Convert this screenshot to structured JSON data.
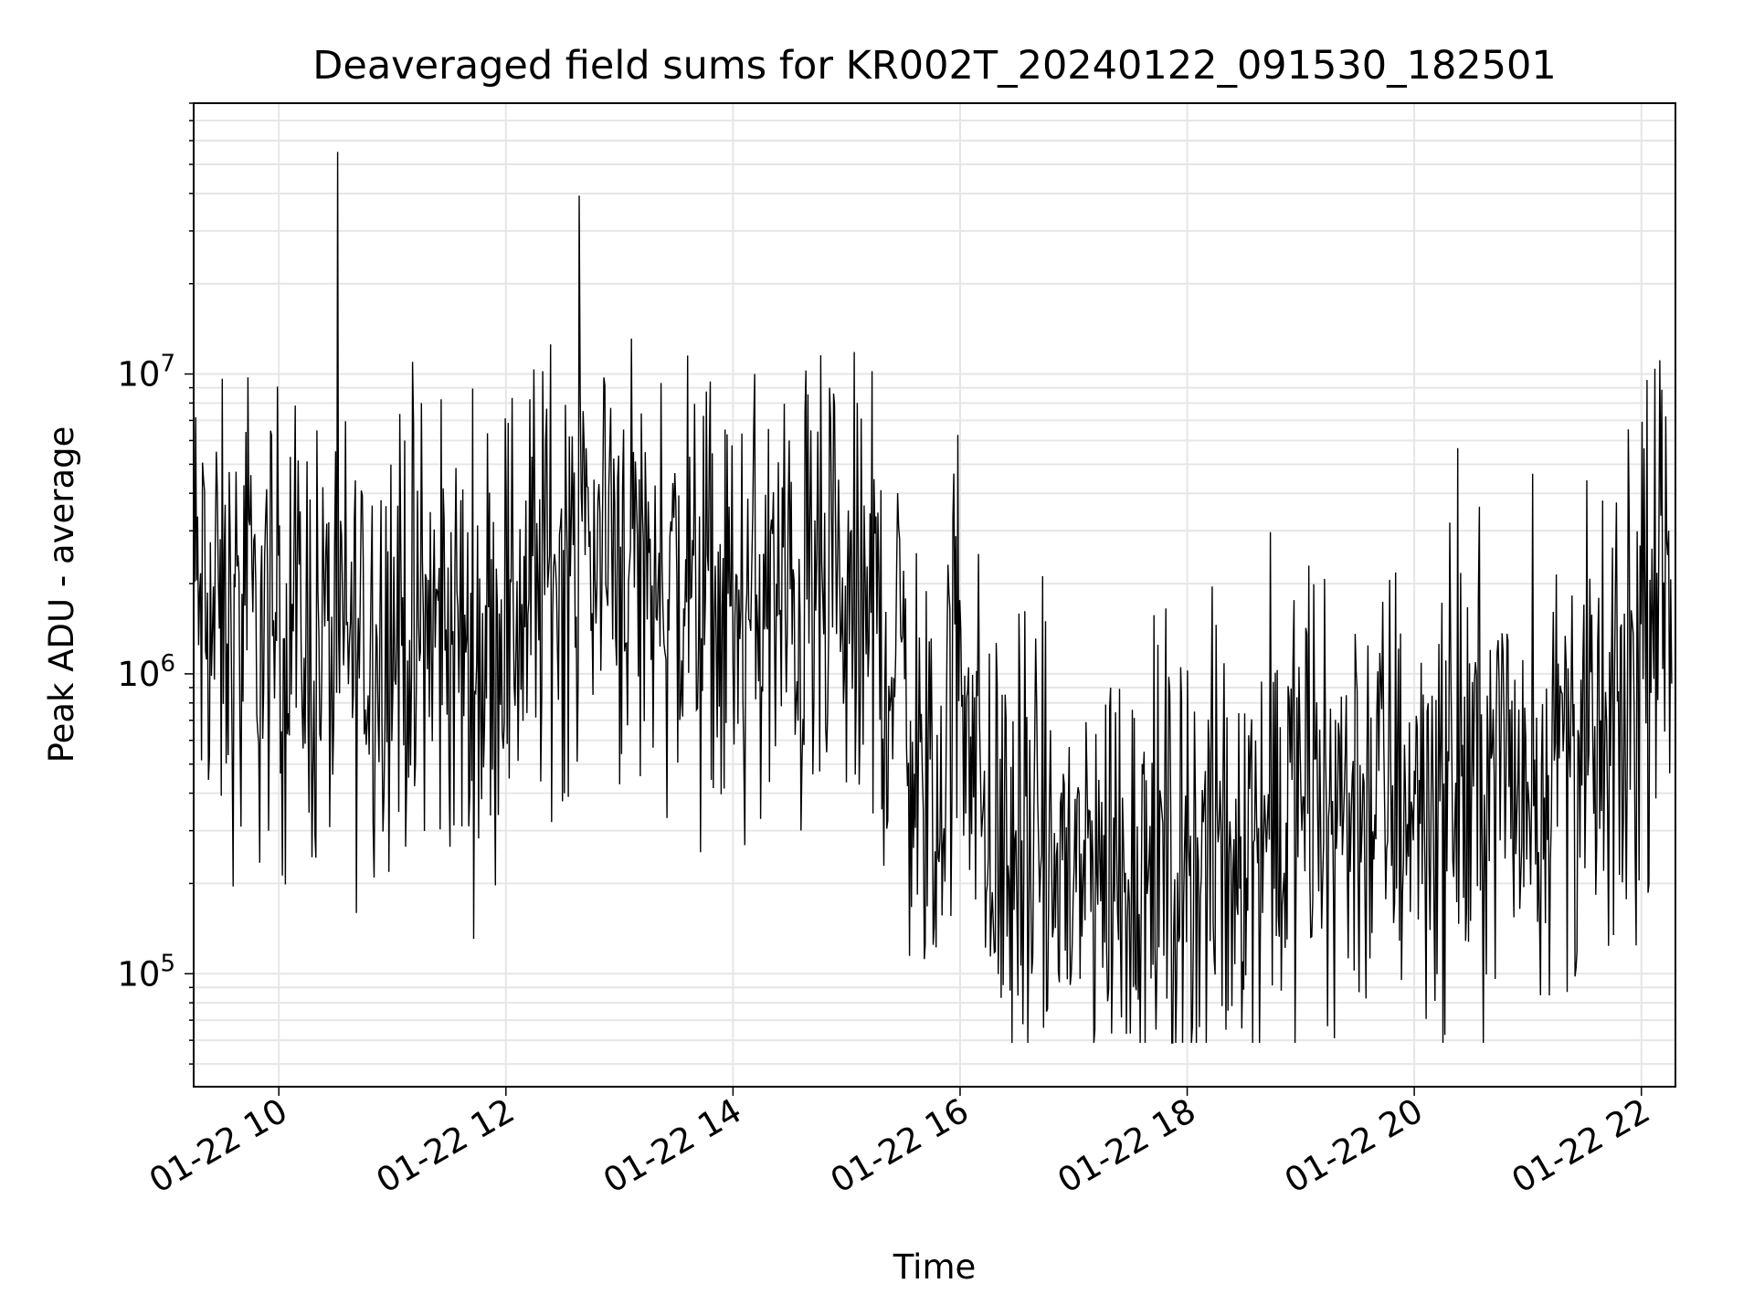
{
  "chart_data": {
    "type": "line",
    "title": "Deaveraged field sums for KR002T_20240122_091530_182501",
    "xlabel": "Time",
    "ylabel": "Peak ADU - average",
    "y_scale": "log",
    "ylim": [
      42000,
      80000000
    ],
    "xlim": [
      "2024-01-22 09:15",
      "2024-01-22 22:18"
    ],
    "x_tick_labels": [
      "01-22 10",
      "01-22 12",
      "01-22 14",
      "01-22 16",
      "01-22 18",
      "01-22 20",
      "01-22 22"
    ],
    "x_ticks": [
      "2024-01-22 10:00",
      "2024-01-22 12:00",
      "2024-01-22 14:00",
      "2024-01-22 16:00",
      "2024-01-22 18:00",
      "2024-01-22 20:00",
      "2024-01-22 22:00"
    ],
    "y_tick_labels": [
      {
        "base": "10",
        "exp": "5",
        "value": 100000
      },
      {
        "base": "10",
        "exp": "6",
        "value": 1000000
      },
      {
        "base": "10",
        "exp": "7",
        "value": 10000000
      }
    ],
    "grid": true,
    "line_color": "#000000",
    "series": [
      {
        "x": [
          "2024-01-22 09:15",
          "2024-01-22 09:20",
          "2024-01-22 09:30",
          "2024-01-22 09:45",
          "2024-01-22 10:00",
          "2024-01-22 10:15",
          "2024-01-22 10:30",
          "2024-01-22 10:45",
          "2024-01-22 11:00",
          "2024-01-22 11:15",
          "2024-01-22 11:30",
          "2024-01-22 11:45",
          "2024-01-22 12:00",
          "2024-01-22 12:15",
          "2024-01-22 12:30",
          "2024-01-22 12:45",
          "2024-01-22 13:00",
          "2024-01-22 13:15",
          "2024-01-22 13:30",
          "2024-01-22 13:45",
          "2024-01-22 14:00",
          "2024-01-22 14:15",
          "2024-01-22 14:30",
          "2024-01-22 14:45",
          "2024-01-22 15:00",
          "2024-01-22 15:15",
          "2024-01-22 15:30",
          "2024-01-22 15:45",
          "2024-01-22 16:00",
          "2024-01-22 16:15",
          "2024-01-22 16:30",
          "2024-01-22 16:45",
          "2024-01-22 17:00",
          "2024-01-22 17:15",
          "2024-01-22 17:30",
          "2024-01-22 17:45",
          "2024-01-22 18:00",
          "2024-01-22 18:15",
          "2024-01-22 18:30",
          "2024-01-22 18:45",
          "2024-01-22 19:00",
          "2024-01-22 19:15",
          "2024-01-22 19:30",
          "2024-01-22 19:45",
          "2024-01-22 20:00",
          "2024-01-22 20:15",
          "2024-01-22 20:30",
          "2024-01-22 20:45",
          "2024-01-22 21:00",
          "2024-01-22 21:15",
          "2024-01-22 21:30",
          "2024-01-22 21:45",
          "2024-01-22 22:00",
          "2024-01-22 22:10",
          "2024-01-22 22:15"
        ],
        "y": [
          2000000,
          1500000,
          1400000,
          1300000,
          1500000,
          1300000,
          1200000,
          1300000,
          1500000,
          1300000,
          1300000,
          1200000,
          1500000,
          2000000,
          2500000,
          2800000,
          2700000,
          2200000,
          1900000,
          1600000,
          1500000,
          1700000,
          1600000,
          1600000,
          1500000,
          1400000,
          1000000,
          250000,
          1500000,
          250000,
          250000,
          220000,
          220000,
          230000,
          240000,
          230000,
          220000,
          230000,
          280000,
          330000,
          350000,
          380000,
          380000,
          400000,
          400000,
          400000,
          450000,
          480000,
          450000,
          520000,
          550000,
          500000,
          1100000,
          1600000,
          2200000
        ]
      }
    ]
  }
}
